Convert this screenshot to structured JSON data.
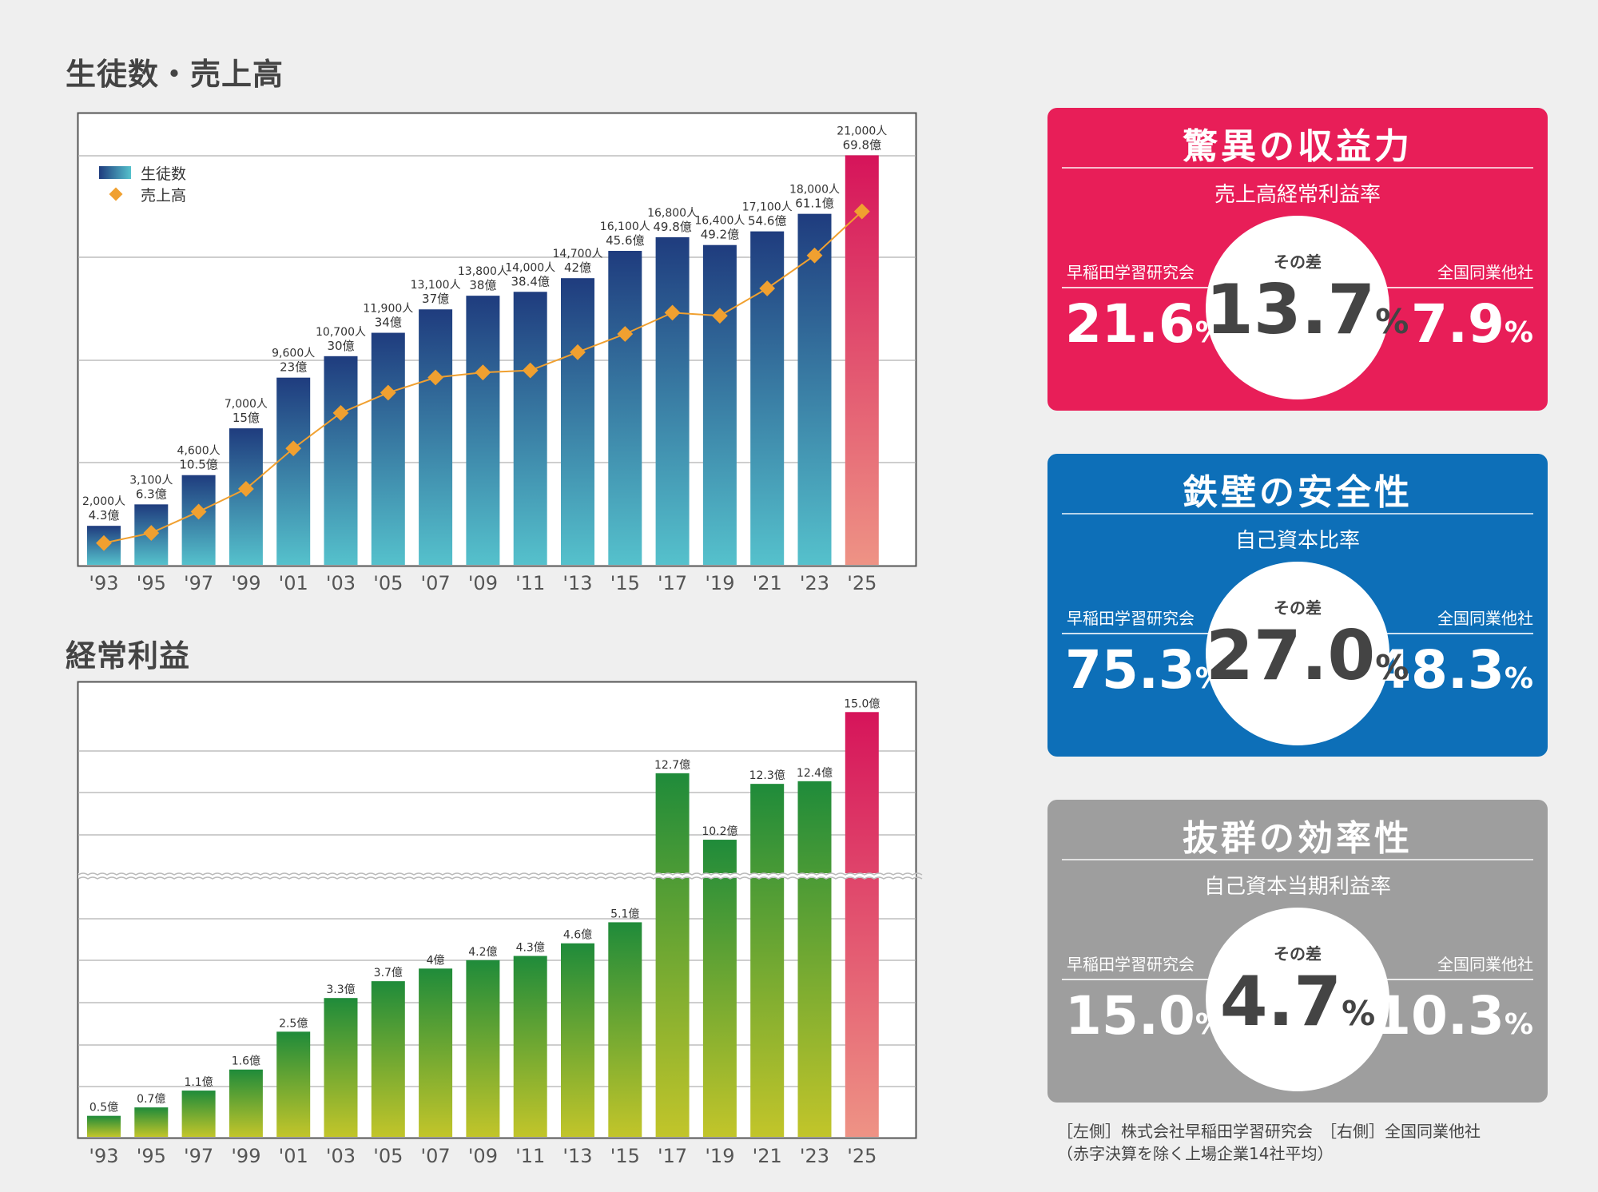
{
  "charts": {
    "students_sales": {
      "title": "生徒数・売上高",
      "legend": {
        "students": "生徒数",
        "sales": "売上高"
      }
    },
    "ordinary_profit": {
      "title": "経常利益"
    }
  },
  "chart_data": [
    {
      "type": "bar",
      "title": "生徒数・売上高",
      "categories": [
        "'93",
        "'95",
        "'97",
        "'99",
        "'01",
        "'03",
        "'05",
        "'07",
        "'09",
        "'11",
        "'13",
        "'15",
        "'17",
        "'19",
        "'21",
        "'23",
        "'25"
      ],
      "series": [
        {
          "name": "生徒数",
          "values": [
            2000,
            3100,
            4600,
            7000,
            9600,
            10700,
            11900,
            13100,
            13800,
            14000,
            14700,
            16100,
            16800,
            16400,
            17100,
            18000,
            21000
          ],
          "labels": [
            "2,000人",
            "3,100人",
            "4,600人",
            "7,000人",
            "9,600人",
            "10,700人",
            "11,900人",
            "13,100人",
            "13,800人",
            "14,000人",
            "14,700人",
            "16,100人",
            "16,800人",
            "16,400人",
            "17,100人",
            "18,000人",
            "21,000人"
          ]
        },
        {
          "name": "売上高",
          "type": "line",
          "values": [
            4.3,
            6.3,
            10.5,
            15,
            23,
            30,
            34,
            37,
            38,
            38.4,
            42,
            45.6,
            49.8,
            49.2,
            54.6,
            61.1,
            69.8
          ],
          "labels": [
            "4.3億",
            "6.3億",
            "10.5億",
            "15億",
            "23億",
            "30億",
            "34億",
            "37億",
            "38億",
            "38.4億",
            "42億",
            "45.6億",
            "49.8億",
            "49.2億",
            "54.6億",
            "61.1億",
            "69.8億"
          ]
        }
      ],
      "ylim_students": [
        0,
        22000
      ],
      "ylim_sales": [
        0,
        80
      ],
      "highlight": "'25",
      "legend_position": "top-left",
      "grid": true
    },
    {
      "type": "bar",
      "title": "経常利益",
      "categories": [
        "'93",
        "'95",
        "'97",
        "'99",
        "'01",
        "'03",
        "'05",
        "'07",
        "'09",
        "'11",
        "'13",
        "'15",
        "'17",
        "'19",
        "'21",
        "'23",
        "'25"
      ],
      "values": [
        0.5,
        0.7,
        1.1,
        1.6,
        2.5,
        3.3,
        3.7,
        4,
        4.2,
        4.3,
        4.6,
        5.1,
        12.7,
        10.2,
        12.3,
        12.4,
        15.0
      ],
      "labels": [
        "0.5億",
        "0.7億",
        "1.1億",
        "1.6億",
        "2.5億",
        "3.3億",
        "3.7億",
        "4億",
        "4.2億",
        "4.3億",
        "4.6億",
        "5.1億",
        "12.7億",
        "10.2億",
        "12.3億",
        "12.4億",
        "15.0億"
      ],
      "axis_break": true,
      "highlight": "'25",
      "grid": true
    }
  ],
  "panels": [
    {
      "title": "驚異の収益力",
      "subtitle": "売上高経常利益率",
      "left_name": "早稲田学習研究会",
      "right_name": "全国同業他社",
      "left_value": "21.6",
      "right_value": "7.9",
      "diff_label": "その差",
      "diff_value": "13.7",
      "unit": "%",
      "color": "#e81e58"
    },
    {
      "title": "鉄壁の安全性",
      "subtitle": "自己資本比率",
      "left_name": "早稲田学習研究会",
      "right_name": "全国同業他社",
      "left_value": "75.3",
      "right_value": "48.3",
      "diff_label": "その差",
      "diff_value": "27.0",
      "unit": "%",
      "color": "#0d6fb8"
    },
    {
      "title": "抜群の効率性",
      "subtitle": "自己資本当期利益率",
      "left_name": "早稲田学習研究会",
      "right_name": "全国同業他社",
      "left_value": "15.0",
      "right_value": "10.3",
      "diff_label": "その差",
      "diff_value": "4.7",
      "unit": "%",
      "color": "#9e9e9e"
    }
  ],
  "footnote": {
    "line1": "［左側］株式会社早稲田学習研究会　［右側］全国同業他社",
    "line2": "（赤字決算を除く上場企業14社平均）"
  }
}
